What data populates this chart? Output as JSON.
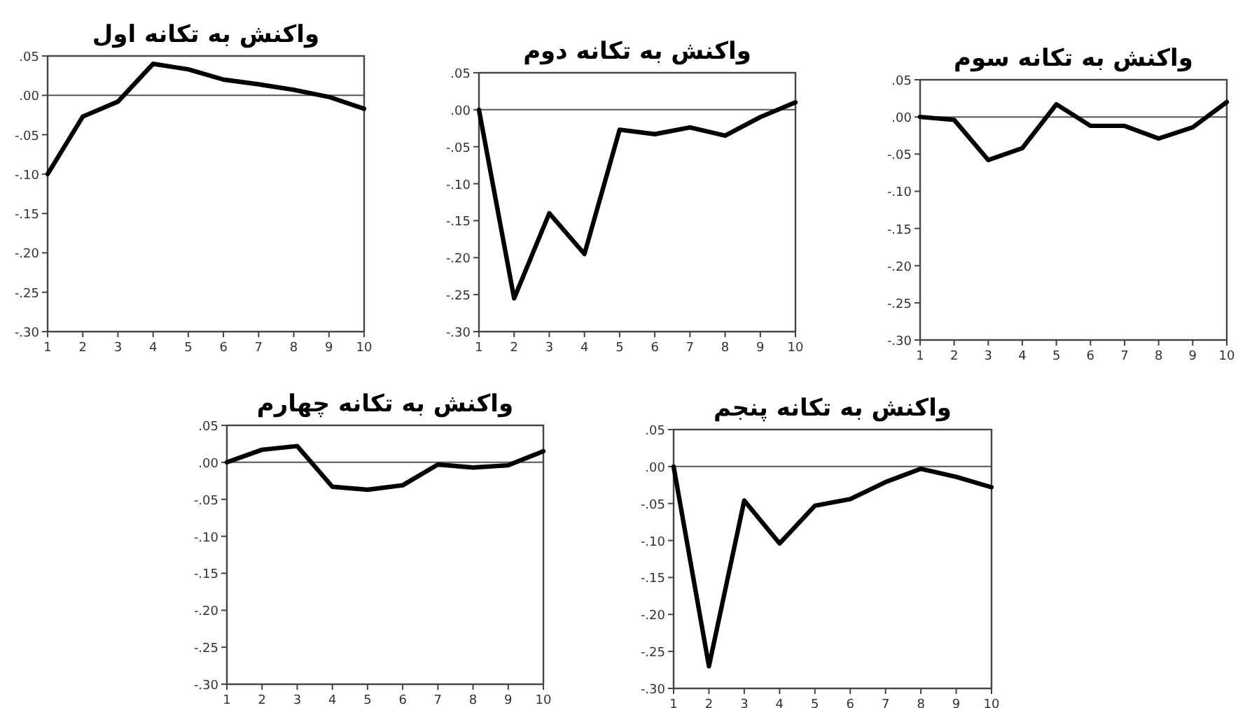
{
  "chart_data": [
    {
      "type": "line",
      "title": "واکنش به تکانه اول",
      "x": [
        1,
        2,
        3,
        4,
        5,
        6,
        7,
        8,
        9,
        10
      ],
      "xlim": [
        1,
        10
      ],
      "xticks": [
        1,
        2,
        3,
        4,
        5,
        6,
        7,
        8,
        9,
        10
      ],
      "ylim": [
        -0.3,
        0.05
      ],
      "yticks": [
        {
          "value": 0.05,
          "label": ".05"
        },
        {
          "value": 0,
          "label": ".00"
        },
        {
          "value": -0.05,
          "label": "-.05"
        },
        {
          "value": -0.1,
          "label": "-.10"
        },
        {
          "value": -0.15,
          "label": "-.15"
        },
        {
          "value": -0.2,
          "label": "-.20"
        },
        {
          "value": -0.25,
          "label": "-.25"
        },
        {
          "value": -0.3,
          "label": "-.30"
        }
      ],
      "ref_lines": [
        {
          "axis": "y",
          "value": 0,
          "color": "#555555"
        }
      ],
      "series": [
        {
          "color": "#000000",
          "values": [
            -0.1,
            -0.027,
            -0.008,
            0.04,
            0.033,
            0.02,
            0.014,
            0.007,
            -0.002,
            -0.017
          ]
        }
      ]
    },
    {
      "type": "line",
      "title": "واکنش به تکانه دوم",
      "x": [
        1,
        2,
        3,
        4,
        5,
        6,
        7,
        8,
        9,
        10
      ],
      "xlim": [
        1,
        10
      ],
      "xticks": [
        1,
        2,
        3,
        4,
        5,
        6,
        7,
        8,
        9,
        10
      ],
      "ylim": [
        -0.3,
        0.05
      ],
      "yticks": [
        {
          "value": 0.05,
          "label": ".05"
        },
        {
          "value": 0,
          "label": ".00"
        },
        {
          "value": -0.05,
          "label": "-.05"
        },
        {
          "value": -0.1,
          "label": "-.10"
        },
        {
          "value": -0.15,
          "label": "-.15"
        },
        {
          "value": -0.2,
          "label": "-.20"
        },
        {
          "value": -0.25,
          "label": "-.25"
        },
        {
          "value": -0.3,
          "label": "-.30"
        }
      ],
      "ref_lines": [
        {
          "axis": "y",
          "value": 0,
          "color": "#555555"
        }
      ],
      "series": [
        {
          "color": "#000000",
          "values": [
            0,
            -0.255,
            -0.14,
            -0.195,
            -0.027,
            -0.033,
            -0.024,
            -0.035,
            -0.01,
            0.01
          ]
        }
      ]
    },
    {
      "type": "line",
      "title": "واکنش به تکانه سوم",
      "x": [
        1,
        2,
        3,
        4,
        5,
        6,
        7,
        8,
        9,
        10
      ],
      "xlim": [
        1,
        10
      ],
      "xticks": [
        1,
        2,
        3,
        4,
        5,
        6,
        7,
        8,
        9,
        10
      ],
      "ylim": [
        -0.3,
        0.05
      ],
      "yticks": [
        {
          "value": 0.05,
          "label": ".05"
        },
        {
          "value": 0,
          "label": ".00"
        },
        {
          "value": -0.05,
          "label": "-.05"
        },
        {
          "value": -0.1,
          "label": "-.10"
        },
        {
          "value": -0.15,
          "label": "-.15"
        },
        {
          "value": -0.2,
          "label": "-.20"
        },
        {
          "value": -0.25,
          "label": "-.25"
        },
        {
          "value": -0.3,
          "label": "-.30"
        }
      ],
      "ref_lines": [
        {
          "axis": "y",
          "value": 0,
          "color": "#555555"
        }
      ],
      "series": [
        {
          "color": "#000000",
          "values": [
            0,
            -0.004,
            -0.058,
            -0.042,
            0.017,
            -0.012,
            -0.012,
            -0.029,
            -0.014,
            0.02
          ]
        }
      ]
    },
    {
      "type": "line",
      "title": "واکنش به تکانه چهارم",
      "x": [
        1,
        2,
        3,
        4,
        5,
        6,
        7,
        8,
        9,
        10
      ],
      "xlim": [
        1,
        10
      ],
      "xticks": [
        1,
        2,
        3,
        4,
        5,
        6,
        7,
        8,
        9,
        10
      ],
      "ylim": [
        -0.3,
        0.05
      ],
      "yticks": [
        {
          "value": 0.05,
          "label": ".05"
        },
        {
          "value": 0,
          "label": ".00"
        },
        {
          "value": -0.05,
          "label": "-.05"
        },
        {
          "value": -0.1,
          "label": "-.10"
        },
        {
          "value": -0.15,
          "label": "-.15"
        },
        {
          "value": -0.2,
          "label": "-.20"
        },
        {
          "value": -0.25,
          "label": "-.25"
        },
        {
          "value": -0.3,
          "label": "-.30"
        }
      ],
      "ref_lines": [
        {
          "axis": "y",
          "value": 0,
          "color": "#555555"
        }
      ],
      "series": [
        {
          "color": "#000000",
          "values": [
            0,
            0.017,
            0.022,
            -0.033,
            -0.037,
            -0.031,
            -0.003,
            -0.007,
            -0.004,
            0.015
          ]
        }
      ]
    },
    {
      "type": "line",
      "title": "واکنش به تکانه پنجم",
      "x": [
        1,
        2,
        3,
        4,
        5,
        6,
        7,
        8,
        9,
        10
      ],
      "xlim": [
        1,
        10
      ],
      "xticks": [
        1,
        2,
        3,
        4,
        5,
        6,
        7,
        8,
        9,
        10
      ],
      "ylim": [
        -0.3,
        0.05
      ],
      "yticks": [
        {
          "value": 0.05,
          "label": ".05"
        },
        {
          "value": 0,
          "label": ".00"
        },
        {
          "value": -0.05,
          "label": "-.05"
        },
        {
          "value": -0.1,
          "label": "-.10"
        },
        {
          "value": -0.15,
          "label": "-.15"
        },
        {
          "value": -0.2,
          "label": "-.20"
        },
        {
          "value": -0.25,
          "label": "-.25"
        },
        {
          "value": -0.3,
          "label": "-.30"
        }
      ],
      "ref_lines": [
        {
          "axis": "y",
          "value": 0,
          "color": "#555555"
        }
      ],
      "series": [
        {
          "color": "#000000",
          "values": [
            0,
            -0.27,
            -0.046,
            -0.104,
            -0.053,
            -0.044,
            -0.021,
            -0.003,
            -0.014,
            -0.028
          ]
        }
      ]
    }
  ]
}
